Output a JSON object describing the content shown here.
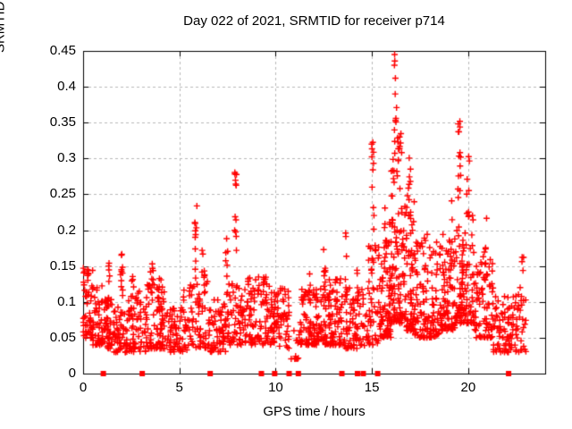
{
  "chart": {
    "title": "Day 022 of 2021, SRMTID for receiver p714",
    "xlabel": "GPS time / hours",
    "ylabel": "SRMTID / TECUs"
  },
  "chart_data": {
    "type": "scatter",
    "title": "Day 022 of 2021, SRMTID for receiver p714",
    "xlabel": "GPS time / hours",
    "ylabel": "SRMTID / TECUs",
    "xlim": [
      0,
      24
    ],
    "ylim": [
      0,
      0.45
    ],
    "x_tick_values": [
      0,
      5,
      10,
      15,
      20
    ],
    "x_tick_labels": [
      "0",
      "5",
      "10",
      "15",
      "20"
    ],
    "y_tick_values": [
      0,
      0.05,
      0.1,
      0.15,
      0.2,
      0.25,
      0.3,
      0.35,
      0.4,
      0.45
    ],
    "y_tick_labels": [
      "0",
      "0.05",
      "0.1",
      "0.15",
      "0.2",
      "0.25",
      "0.3",
      "0.35",
      "0.4",
      "0.45"
    ],
    "grid": true,
    "legend": "none",
    "marker": "plus",
    "colors": {
      "marker": "#ff0000",
      "grid": "#b9b9b9",
      "frame": "#000000",
      "text": "#000000",
      "background": "#ffffff"
    },
    "seed": 20210122,
    "low_bias": 1.7,
    "density_segments": [
      [
        0.0,
        0.5,
        55,
        0.05,
        0.15
      ],
      [
        0.5,
        1.0,
        45,
        0.04,
        0.125
      ],
      [
        1.0,
        1.6,
        50,
        0.035,
        0.105
      ],
      [
        1.6,
        2.3,
        55,
        0.03,
        0.1
      ],
      [
        2.3,
        3.3,
        70,
        0.03,
        0.115
      ],
      [
        3.3,
        4.3,
        80,
        0.035,
        0.125
      ],
      [
        4.3,
        5.5,
        70,
        0.03,
        0.1
      ],
      [
        5.5,
        6.5,
        60,
        0.035,
        0.13
      ],
      [
        6.5,
        7.5,
        70,
        0.03,
        0.105
      ],
      [
        7.5,
        8.3,
        60,
        0.04,
        0.13
      ],
      [
        8.3,
        9.7,
        90,
        0.04,
        0.135
      ],
      [
        9.7,
        10.2,
        45,
        0.04,
        0.13
      ],
      [
        10.2,
        10.7,
        35,
        0.035,
        0.12
      ],
      [
        10.7,
        11.25,
        12,
        0.02,
        0.06
      ],
      [
        11.25,
        12.3,
        90,
        0.04,
        0.12
      ],
      [
        12.3,
        13.45,
        100,
        0.04,
        0.135
      ],
      [
        13.5,
        14.8,
        75,
        0.035,
        0.12
      ],
      [
        14.8,
        15.4,
        50,
        0.04,
        0.185
      ],
      [
        15.4,
        16.0,
        80,
        0.05,
        0.22
      ],
      [
        16.0,
        16.6,
        85,
        0.07,
        0.3
      ],
      [
        16.6,
        17.2,
        80,
        0.06,
        0.25
      ],
      [
        17.2,
        18.5,
        120,
        0.05,
        0.185
      ],
      [
        18.5,
        19.3,
        90,
        0.06,
        0.195
      ],
      [
        19.3,
        20.3,
        110,
        0.07,
        0.225
      ],
      [
        20.3,
        21.3,
        80,
        0.05,
        0.165
      ],
      [
        21.3,
        22.3,
        70,
        0.03,
        0.11
      ],
      [
        22.3,
        23.0,
        40,
        0.03,
        0.125
      ]
    ],
    "spike_columns": [
      [
        1.35,
        0.15,
        0.1,
        0.155,
        7
      ],
      [
        2.0,
        0.12,
        0.1,
        0.17,
        11
      ],
      [
        2.55,
        0.15,
        0.09,
        0.15,
        6
      ],
      [
        3.6,
        0.2,
        0.1,
        0.155,
        9
      ],
      [
        3.95,
        0.2,
        0.08,
        0.135,
        7
      ],
      [
        5.2,
        0.1,
        0.08,
        0.125,
        5
      ],
      [
        5.85,
        0.15,
        0.13,
        0.248,
        11
      ],
      [
        6.25,
        0.2,
        0.09,
        0.18,
        8
      ],
      [
        7.45,
        0.12,
        0.11,
        0.2,
        8
      ],
      [
        7.92,
        0.1,
        0.165,
        0.281,
        12
      ],
      [
        8.6,
        0.15,
        0.08,
        0.145,
        6
      ],
      [
        9.45,
        0.2,
        0.09,
        0.135,
        7
      ],
      [
        11.8,
        0.15,
        0.09,
        0.155,
        6
      ],
      [
        12.55,
        0.12,
        0.11,
        0.175,
        8
      ],
      [
        13.15,
        0.12,
        0.1,
        0.165,
        6
      ],
      [
        13.65,
        0.12,
        0.05,
        0.198,
        12
      ],
      [
        14.3,
        0.15,
        0.09,
        0.152,
        6
      ],
      [
        15.05,
        0.12,
        0.19,
        0.33,
        11
      ],
      [
        15.7,
        0.15,
        0.14,
        0.25,
        8
      ],
      [
        16.25,
        0.2,
        0.28,
        0.36,
        9
      ],
      [
        16.45,
        0.2,
        0.3,
        0.35,
        8
      ],
      [
        16.95,
        0.15,
        0.19,
        0.305,
        9
      ],
      [
        17.8,
        0.2,
        0.13,
        0.2,
        6
      ],
      [
        19.2,
        0.12,
        0.15,
        0.25,
        6
      ],
      [
        19.55,
        0.18,
        0.24,
        0.36,
        14
      ],
      [
        20.0,
        0.2,
        0.2,
        0.31,
        8
      ],
      [
        20.9,
        0.12,
        0.13,
        0.225,
        7
      ],
      [
        22.85,
        0.12,
        0.1,
        0.175,
        5
      ]
    ],
    "peak_points": [
      [
        16.18,
        0.445
      ],
      [
        16.19,
        0.436
      ],
      [
        16.17,
        0.43
      ],
      [
        16.22,
        0.412
      ],
      [
        16.21,
        0.39
      ],
      [
        16.28,
        0.371
      ]
    ],
    "floor_square_hours": [
      1.05,
      3.07,
      6.6,
      9.26,
      9.95,
      10.7,
      11.18,
      13.44,
      14.25,
      14.55,
      15.3,
      22.1
    ]
  }
}
